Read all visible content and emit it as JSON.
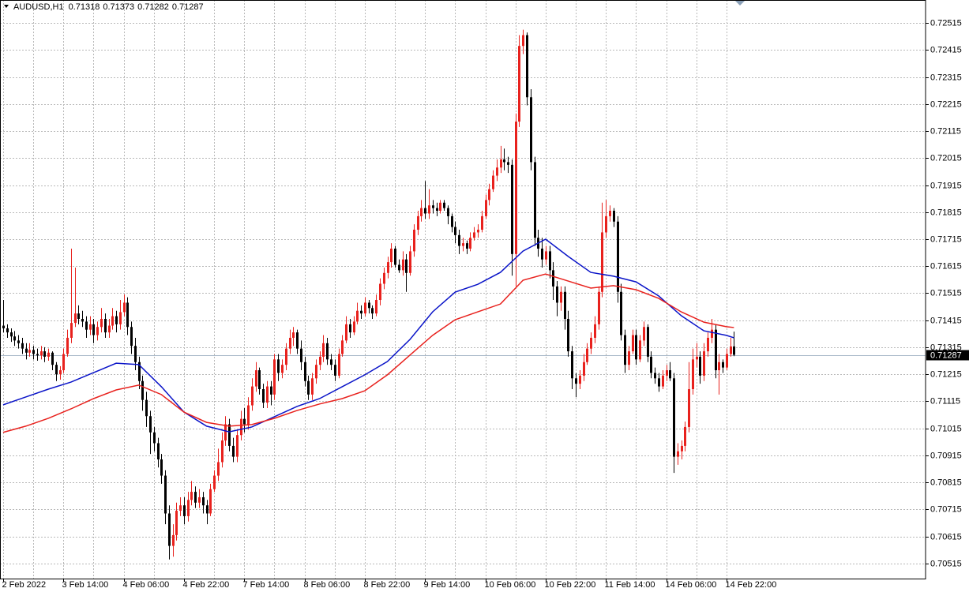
{
  "chart_data": {
    "type": "candlestick",
    "symbol": "AUDUSD,H1",
    "up_color": "#e8211d",
    "down_color": "#000000",
    "price_line_color": "#a9b8c8",
    "grid": true,
    "ylim": [
      0.70459,
      0.726
    ],
    "yticks": [
      0.70515,
      0.70615,
      0.70715,
      0.70815,
      0.70915,
      0.71015,
      0.71115,
      0.71215,
      0.71315,
      0.71415,
      0.71515,
      0.71615,
      0.71715,
      0.71815,
      0.71915,
      0.72015,
      0.72115,
      0.72215,
      0.72315,
      0.72415,
      0.72515
    ],
    "categories": [
      "2 Feb 2022",
      null,
      null,
      null,
      null,
      null,
      null,
      null,
      null,
      null,
      null,
      null,
      null,
      null,
      null,
      null,
      "3 Feb 14:00",
      null,
      null,
      null,
      null,
      null,
      null,
      null,
      null,
      null,
      null,
      null,
      null,
      null,
      null,
      null,
      "4 Feb 06:00",
      null,
      null,
      null,
      null,
      null,
      null,
      null,
      null,
      null,
      null,
      null,
      null,
      null,
      null,
      null,
      "4 Feb 22:00",
      null,
      null,
      null,
      null,
      null,
      null,
      null,
      null,
      null,
      null,
      null,
      null,
      null,
      null,
      null,
      "7 Feb 14:00",
      null,
      null,
      null,
      null,
      null,
      null,
      null,
      null,
      null,
      null,
      null,
      null,
      null,
      null,
      null,
      "8 Feb 06:00",
      null,
      null,
      null,
      null,
      null,
      null,
      null,
      null,
      null,
      null,
      null,
      null,
      null,
      null,
      null,
      "8 Feb 22:00",
      null,
      null,
      null,
      null,
      null,
      null,
      null,
      null,
      null,
      null,
      null,
      null,
      null,
      null,
      null,
      "9 Feb 14:00",
      null,
      null,
      null,
      null,
      null,
      null,
      null,
      null,
      null,
      null,
      null,
      null,
      null,
      null,
      null,
      "10 Feb 06:00",
      null,
      null,
      null,
      null,
      null,
      null,
      null,
      null,
      null,
      null,
      null,
      null,
      null,
      null,
      null,
      "10 Feb 22:00",
      null,
      null,
      null,
      null,
      null,
      null,
      null,
      null,
      null,
      null,
      null,
      null,
      null,
      null,
      null,
      "11 Feb 14:00",
      null,
      null,
      null,
      null,
      null,
      null,
      null,
      null,
      null,
      null,
      null,
      null,
      null,
      null,
      null,
      "14 Feb 06:00",
      null,
      null,
      null,
      null,
      null,
      null,
      null,
      null,
      null,
      null,
      null,
      null,
      null,
      null,
      null,
      "14 Feb 22:00",
      null,
      null
    ],
    "open": [
      0.71395,
      0.71385,
      0.7137,
      0.71355,
      0.7134,
      0.7133,
      0.7131,
      0.71295,
      0.71305,
      0.7129,
      0.71285,
      0.713,
      0.7128,
      0.71295,
      0.7125,
      0.71215,
      0.7123,
      0.7129,
      0.7135,
      0.71405,
      0.7144,
      0.7142,
      0.7141,
      0.7138,
      0.714,
      0.7136,
      0.7139,
      0.7142,
      0.7137,
      0.71395,
      0.7143,
      0.714,
      0.71445,
      0.7148,
      0.7139,
      0.7132,
      0.7126,
      0.7119,
      0.7112,
      0.7106,
      0.71,
      0.7096,
      0.709,
      0.7084,
      0.707,
      0.7058,
      0.7062,
      0.7071,
      0.7073,
      0.7069,
      0.7075,
      0.7078,
      0.7074,
      0.7076,
      0.7073,
      0.707,
      0.7079,
      0.7084,
      0.7089,
      0.7097,
      0.7103,
      0.7095,
      0.7091,
      0.7099,
      0.7105,
      0.7103,
      0.711,
      0.7117,
      0.7123,
      0.7116,
      0.7111,
      0.7117,
      0.7114,
      0.7127,
      0.7122,
      0.7125,
      0.7131,
      0.7135,
      0.7137,
      0.7131,
      0.7126,
      0.7119,
      0.7114,
      0.712,
      0.7125,
      0.7128,
      0.7133,
      0.7127,
      0.7125,
      0.7121,
      0.7129,
      0.7134,
      0.714,
      0.7137,
      0.7141,
      0.7145,
      0.7144,
      0.7148,
      0.7146,
      0.7144,
      0.7149,
      0.7155,
      0.7159,
      0.7163,
      0.7168,
      0.7162,
      0.716,
      0.7164,
      0.7159,
      0.7167,
      0.7175,
      0.718,
      0.7183,
      0.7181,
      0.7184,
      0.7183,
      0.7182,
      0.7185,
      0.7183,
      0.718,
      0.7176,
      0.7173,
      0.7169,
      0.717,
      0.7168,
      0.7172,
      0.7174,
      0.7175,
      0.718,
      0.7186,
      0.719,
      0.7195,
      0.7198,
      0.7201,
      0.72,
      0.7199,
      0.7166,
      0.7215,
      0.7243,
      0.7247,
      0.7224,
      0.72,
      0.7172,
      0.7168,
      0.7164,
      0.7167,
      0.716,
      0.7154,
      0.7148,
      0.7152,
      0.7142,
      0.713,
      0.712,
      0.7118,
      0.7121,
      0.7126,
      0.7131,
      0.7135,
      0.714,
      0.7152,
      0.7174,
      0.718,
      0.7182,
      0.7178,
      0.7152,
      0.7136,
      0.7125,
      0.713,
      0.7136,
      0.7127,
      0.7134,
      0.7139,
      0.7128,
      0.7122,
      0.712,
      0.7117,
      0.7121,
      0.7123,
      0.712,
      0.7091,
      0.7093,
      0.7095,
      0.7102,
      0.7116,
      0.7127,
      0.7128,
      0.7121,
      0.713,
      0.7135,
      0.7138,
      0.7123,
      0.7126,
      0.7124,
      0.7129,
      0.71318
    ],
    "high": [
      0.7149,
      0.714,
      0.71385,
      0.71375,
      0.7136,
      0.7135,
      0.7133,
      0.7133,
      0.7132,
      0.7131,
      0.7132,
      0.71315,
      0.7131,
      0.713,
      0.7126,
      0.71245,
      0.7131,
      0.7138,
      0.7168,
      0.7161,
      0.7147,
      0.7145,
      0.7143,
      0.7143,
      0.7142,
      0.7141,
      0.7146,
      0.7144,
      0.7142,
      0.7146,
      0.7145,
      0.7149,
      0.7151,
      0.715,
      0.7141,
      0.7135,
      0.7128,
      0.7121,
      0.7115,
      0.7108,
      0.7102,
      0.7098,
      0.7092,
      0.7086,
      0.7073,
      0.7066,
      0.7074,
      0.7076,
      0.7076,
      0.7078,
      0.7082,
      0.708,
      0.7079,
      0.7078,
      0.7075,
      0.7081,
      0.7086,
      0.7094,
      0.71,
      0.7106,
      0.7105,
      0.7098,
      0.7101,
      0.7108,
      0.7109,
      0.7113,
      0.712,
      0.7126,
      0.7124,
      0.7118,
      0.7119,
      0.7119,
      0.7129,
      0.7129,
      0.7127,
      0.7133,
      0.7138,
      0.7139,
      0.7138,
      0.7134,
      0.7128,
      0.7121,
      0.7122,
      0.7127,
      0.713,
      0.7136,
      0.7135,
      0.7129,
      0.7127,
      0.7131,
      0.7136,
      0.7143,
      0.7142,
      0.7143,
      0.7148,
      0.7147,
      0.715,
      0.7149,
      0.7147,
      0.7151,
      0.7157,
      0.7161,
      0.7165,
      0.717,
      0.7169,
      0.7164,
      0.7167,
      0.7166,
      0.7169,
      0.7177,
      0.7182,
      0.7186,
      0.7193,
      0.719,
      0.7186,
      0.7185,
      0.7186,
      0.7186,
      0.7184,
      0.7181,
      0.7178,
      0.7175,
      0.7172,
      0.7171,
      0.7174,
      0.7176,
      0.7177,
      0.7182,
      0.7188,
      0.7192,
      0.7197,
      0.7201,
      0.7206,
      0.7205,
      0.7202,
      0.7201,
      0.7218,
      0.7247,
      0.7249,
      0.7248,
      0.7227,
      0.7202,
      0.7175,
      0.7172,
      0.7169,
      0.7169,
      0.7163,
      0.7156,
      0.7154,
      0.7154,
      0.7145,
      0.7132,
      0.7122,
      0.7123,
      0.7129,
      0.7133,
      0.7137,
      0.7143,
      0.7154,
      0.7185,
      0.7186,
      0.7184,
      0.7183,
      0.718,
      0.7155,
      0.7138,
      0.7132,
      0.7138,
      0.7138,
      0.7136,
      0.7141,
      0.714,
      0.713,
      0.7124,
      0.7122,
      0.7123,
      0.7125,
      0.7126,
      0.7122,
      0.7096,
      0.7097,
      0.7104,
      0.7126,
      0.7131,
      0.7133,
      0.713,
      0.7133,
      0.7137,
      0.7142,
      0.714,
      0.7129,
      0.7127,
      0.7131,
      0.7135,
      0.71373
    ],
    "low": [
      0.7137,
      0.7135,
      0.71335,
      0.7132,
      0.7131,
      0.7129,
      0.7127,
      0.7128,
      0.7127,
      0.71265,
      0.7127,
      0.7126,
      0.71265,
      0.7123,
      0.7119,
      0.71195,
      0.7122,
      0.7128,
      0.7133,
      0.7139,
      0.714,
      0.7139,
      0.7135,
      0.7136,
      0.7133,
      0.7134,
      0.7137,
      0.7135,
      0.7135,
      0.7138,
      0.7137,
      0.7138,
      0.7143,
      0.7136,
      0.7129,
      0.7123,
      0.7116,
      0.7108,
      0.7102,
      0.7092,
      0.7093,
      0.7087,
      0.7081,
      0.7066,
      0.7053,
      0.7054,
      0.706,
      0.7069,
      0.7066,
      0.7067,
      0.7073,
      0.7072,
      0.7072,
      0.707,
      0.7066,
      0.7069,
      0.7078,
      0.7082,
      0.7087,
      0.7095,
      0.7093,
      0.7089,
      0.7089,
      0.7097,
      0.71,
      0.7101,
      0.7108,
      0.7115,
      0.7114,
      0.7109,
      0.7109,
      0.711,
      0.7112,
      0.7119,
      0.712,
      0.7123,
      0.7129,
      0.7132,
      0.7129,
      0.7123,
      0.7117,
      0.7112,
      0.7112,
      0.7118,
      0.7123,
      0.7126,
      0.7125,
      0.7123,
      0.7119,
      0.712,
      0.7128,
      0.7133,
      0.7135,
      0.7136,
      0.714,
      0.7142,
      0.7143,
      0.7144,
      0.7142,
      0.7143,
      0.7147,
      0.7153,
      0.7157,
      0.7161,
      0.7161,
      0.7159,
      0.7158,
      0.7152,
      0.7158,
      0.7165,
      0.7173,
      0.7178,
      0.7179,
      0.7179,
      0.7181,
      0.718,
      0.7181,
      0.7182,
      0.7177,
      0.7174,
      0.717,
      0.7166,
      0.7167,
      0.7166,
      0.7167,
      0.7171,
      0.7172,
      0.7174,
      0.7179,
      0.7184,
      0.7189,
      0.7193,
      0.7196,
      0.7197,
      0.7196,
      0.7158,
      0.7154,
      0.7213,
      0.724,
      0.7221,
      0.7197,
      0.7169,
      0.7165,
      0.7161,
      0.7162,
      0.7157,
      0.7149,
      0.7143,
      0.7145,
      0.7138,
      0.7128,
      0.7116,
      0.7113,
      0.7116,
      0.7119,
      0.7125,
      0.7129,
      0.7133,
      0.7138,
      0.715,
      0.7172,
      0.7178,
      0.7176,
      0.7148,
      0.7134,
      0.7122,
      0.7123,
      0.7129,
      0.7125,
      0.7126,
      0.7132,
      0.7126,
      0.712,
      0.7118,
      0.7115,
      0.7116,
      0.7119,
      0.7119,
      0.7085,
      0.7088,
      0.709,
      0.7093,
      0.71,
      0.7114,
      0.7124,
      0.7118,
      0.7119,
      0.7128,
      0.7133,
      0.712,
      0.7114,
      0.7122,
      0.7123,
      0.7128,
      0.71282
    ],
    "close": [
      0.71385,
      0.7137,
      0.71355,
      0.7134,
      0.7133,
      0.7131,
      0.71295,
      0.71305,
      0.7129,
      0.71285,
      0.713,
      0.7128,
      0.71295,
      0.7125,
      0.71215,
      0.7123,
      0.7129,
      0.7135,
      0.71405,
      0.7144,
      0.7142,
      0.7141,
      0.7138,
      0.714,
      0.7136,
      0.7139,
      0.7142,
      0.7137,
      0.71395,
      0.7143,
      0.714,
      0.71445,
      0.7148,
      0.7139,
      0.7132,
      0.7126,
      0.7119,
      0.7112,
      0.7106,
      0.71,
      0.7096,
      0.709,
      0.7084,
      0.707,
      0.7058,
      0.7062,
      0.7071,
      0.7073,
      0.7069,
      0.7075,
      0.7078,
      0.7074,
      0.7076,
      0.7073,
      0.707,
      0.7079,
      0.7084,
      0.7089,
      0.7097,
      0.7103,
      0.7095,
      0.7091,
      0.7099,
      0.7105,
      0.7103,
      0.711,
      0.7117,
      0.7123,
      0.7116,
      0.7111,
      0.7117,
      0.7114,
      0.7127,
      0.7122,
      0.7125,
      0.7131,
      0.7135,
      0.7137,
      0.7131,
      0.7126,
      0.7119,
      0.7114,
      0.712,
      0.7125,
      0.7128,
      0.7133,
      0.7127,
      0.7125,
      0.7121,
      0.7129,
      0.7134,
      0.714,
      0.7137,
      0.7141,
      0.7145,
      0.7144,
      0.7148,
      0.7146,
      0.7144,
      0.7149,
      0.7155,
      0.7159,
      0.7163,
      0.7168,
      0.7162,
      0.716,
      0.7164,
      0.7159,
      0.7167,
      0.7175,
      0.718,
      0.7183,
      0.7181,
      0.7184,
      0.7183,
      0.7182,
      0.7185,
      0.7183,
      0.718,
      0.7176,
      0.7173,
      0.7169,
      0.717,
      0.7168,
      0.7172,
      0.7174,
      0.7175,
      0.718,
      0.7186,
      0.719,
      0.7195,
      0.7198,
      0.7201,
      0.72,
      0.7199,
      0.7166,
      0.7215,
      0.7243,
      0.7247,
      0.7224,
      0.72,
      0.7172,
      0.7168,
      0.7164,
      0.7167,
      0.716,
      0.7154,
      0.7148,
      0.7152,
      0.7142,
      0.713,
      0.712,
      0.7118,
      0.7121,
      0.7126,
      0.7131,
      0.7135,
      0.714,
      0.7152,
      0.7174,
      0.718,
      0.7182,
      0.7178,
      0.7152,
      0.7136,
      0.7125,
      0.713,
      0.7136,
      0.7127,
      0.7134,
      0.7139,
      0.7128,
      0.7122,
      0.712,
      0.7117,
      0.7121,
      0.7123,
      0.712,
      0.7091,
      0.7093,
      0.7095,
      0.7102,
      0.7116,
      0.7127,
      0.7128,
      0.7121,
      0.713,
      0.7135,
      0.7138,
      0.7123,
      0.7126,
      0.7124,
      0.7129,
      0.71318,
      0.71287
    ],
    "lines": {
      "x": [
        0,
        6,
        12,
        18,
        24,
        30,
        36,
        42,
        48,
        54,
        60,
        66,
        72,
        78,
        84,
        90,
        96,
        102,
        108,
        114,
        120,
        126,
        132,
        138,
        144,
        150,
        156,
        162,
        168,
        174,
        180,
        186,
        192,
        194
      ],
      "series": [
        {
          "color": "#0a14c8",
          "values": [
            0.71102,
            0.71131,
            0.7116,
            0.71186,
            0.71221,
            0.71256,
            0.71251,
            0.71169,
            0.71075,
            0.71023,
            0.71002,
            0.7102,
            0.71058,
            0.71096,
            0.71125,
            0.71169,
            0.71213,
            0.71262,
            0.71344,
            0.71446,
            0.71519,
            0.71548,
            0.71592,
            0.71671,
            0.71715,
            0.71651,
            0.71592,
            0.71578,
            0.71557,
            0.71505,
            0.71432,
            0.71376,
            0.71359,
            0.7135
          ]
        },
        {
          "color": "#e8211d",
          "values": [
            0.71,
            0.71023,
            0.71052,
            0.71087,
            0.71125,
            0.71157,
            0.71175,
            0.7114,
            0.71075,
            0.71037,
            0.71023,
            0.71029,
            0.71052,
            0.71081,
            0.71105,
            0.71125,
            0.71154,
            0.71213,
            0.71286,
            0.71359,
            0.71417,
            0.71446,
            0.71475,
            0.71563,
            0.71586,
            0.7156,
            0.71534,
            0.71543,
            0.71528,
            0.71496,
            0.71446,
            0.71408,
            0.71391,
            0.71388
          ]
        }
      ]
    }
  }
}
